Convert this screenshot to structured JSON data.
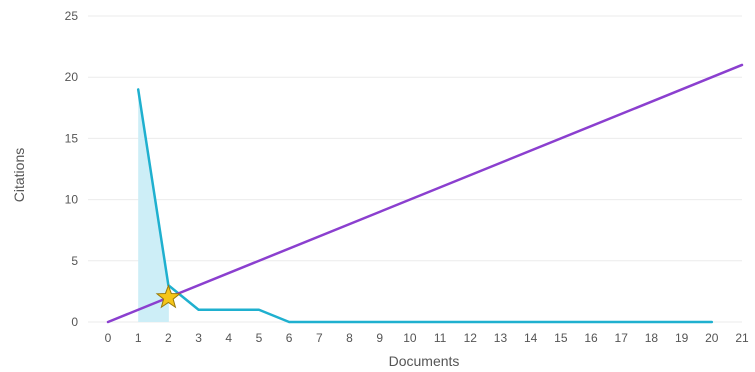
{
  "chart_data": {
    "type": "line",
    "title": "",
    "xlabel": "Documents",
    "ylabel": "Citations",
    "xlim": [
      0,
      21
    ],
    "ylim": [
      0,
      25
    ],
    "x_ticks": [
      0,
      1,
      2,
      3,
      4,
      5,
      6,
      7,
      8,
      9,
      10,
      11,
      12,
      13,
      14,
      15,
      16,
      17,
      18,
      19,
      20,
      21
    ],
    "y_ticks": [
      0,
      5,
      10,
      15,
      20,
      25
    ],
    "grid": "horizontal",
    "series": [
      {
        "style": "line-with-area",
        "color": "#1fb0cf",
        "fill_color": "#cdeef7",
        "x": [
          1,
          2,
          3,
          4,
          5,
          6,
          7,
          8,
          9,
          10,
          11,
          12,
          13,
          14,
          15,
          16,
          17,
          18,
          19,
          20
        ],
        "y": [
          19,
          3,
          1,
          1,
          1,
          0,
          0,
          0,
          0,
          0,
          0,
          0,
          0,
          0,
          0,
          0,
          0,
          0,
          0,
          0
        ]
      },
      {
        "style": "reference-line",
        "color": "#8b3fcf",
        "x": [
          0,
          21
        ],
        "y": [
          0,
          21
        ]
      }
    ],
    "marker": {
      "shape": "star",
      "x": 2,
      "y": 2,
      "fill": "#f5c518",
      "stroke": "#9a7a0a"
    }
  }
}
